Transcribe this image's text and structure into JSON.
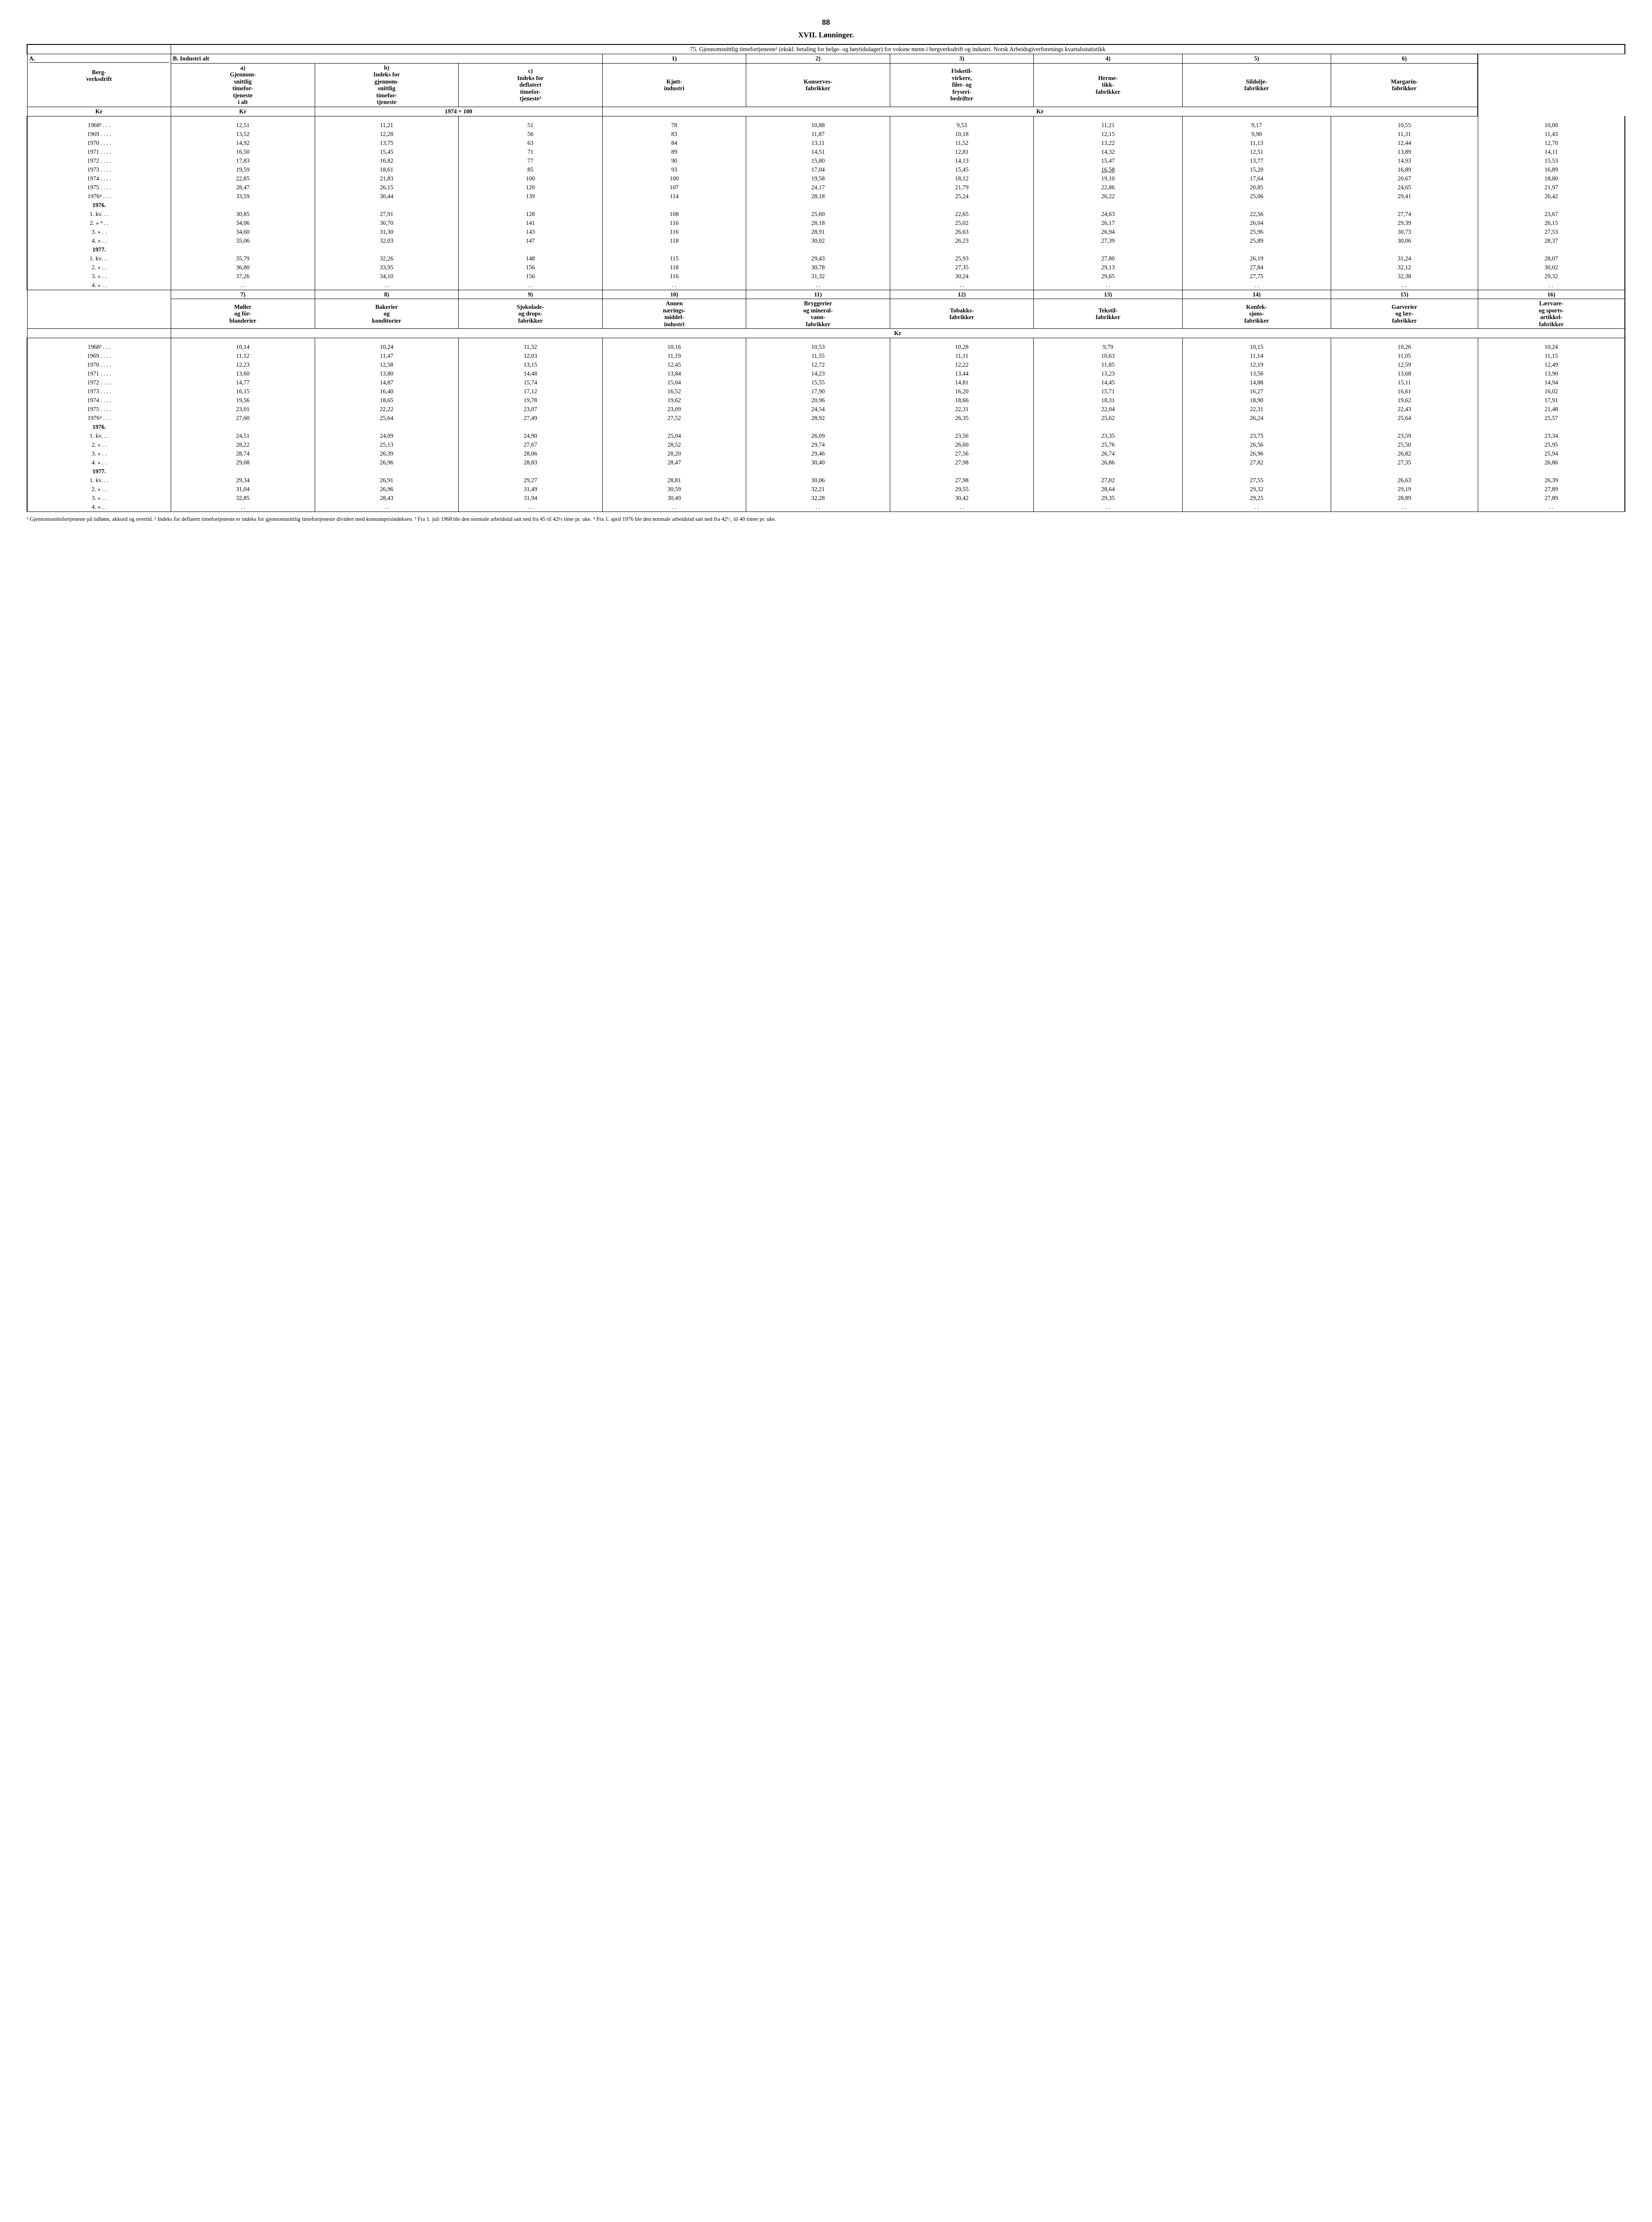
{
  "page_number": "88",
  "section": "XVII. Lønninger.",
  "table_title": "75. Gjennomsnittlig timefortjeneste¹ (ekskl. betaling for helge- og høytidsdager) for voksne menn i bergverksdrift og industri. Norsk Arbeidsgiverforenings kvartalsstatistikk",
  "top_headers": {
    "A": "A.",
    "A_sub": "Berg-\nverksdrift",
    "B": "B.       Industri   alt",
    "a": "a)\nGjennom-\nsnittlig\ntimefor-\ntjeneste\ni alt",
    "b": "b)\nIndeks for\ngjennom-\nsnittlig\ntimefor-\ntjeneste",
    "c": "c)\nIndeks for\ndeflatert\ntimefor-\ntjeneste²",
    "n1": "1)",
    "n2": "2)",
    "n3": "3)",
    "n4": "4)",
    "n5": "5)",
    "n6": "6)",
    "c1": "Kjøtt-\nindustri",
    "c2": "Konserves-\nfabrikker",
    "c3": "Fisketil-\nvirkere,\nfilet- og\nfryseri-\nbedrifter",
    "c4": "Herme-\ntikk-\nfabrikker",
    "c5": "Sildolje-\nfabrikker",
    "c6": "Margarin-\nfabrikker",
    "unit_kr": "Kr",
    "unit_idx": "1974 = 100"
  },
  "bottom_headers": {
    "n7": "7)",
    "c7": "Møller\nog fôr-\nblanderier",
    "n8": "8)",
    "c8": "Bakerier\nog\nkonditorier",
    "n9": "9)",
    "c9": "Sjokolade-\nog drops-\nfabrikker",
    "n10": "10)",
    "c10": "Annen\nnærings-\nmiddel-\nindustri",
    "n11": "11)",
    "c11": "Bryggerier\nog mineral-\nvann-\nfabrikker",
    "n12": "12)",
    "c12": "Tobakks-\nfabrikker",
    "n13": "13)",
    "c13": "Tekstil-\nfabrikker",
    "n14": "14)",
    "c14": "Konfek-\nsjons-\nfabrikker",
    "n15": "15)",
    "c15": "Garverier\nog lær-\nfabrikker",
    "n16": "16)",
    "c16": "Lærvare-\nog sports-\nartikkel-\nfabrikker"
  },
  "row_labels": {
    "y1968": "1968³ . . .",
    "y1969": "1969 . . . .",
    "y1970": "1970 . . . .",
    "y1971": "1971 . . . .",
    "y1972": "1972 . . . .",
    "y1973": "1973 . . . .",
    "y1974": "1974 . . . .",
    "y1975": "1975 . . . .",
    "y1976a": "1976⁴ . . .",
    "h1976": "1976.",
    "q1": "1. kv.  . .",
    "q2": "2.  »  ⁴ . .",
    "q2b": "2.  »    . .",
    "q3": "3.  »    . .",
    "q4": "4.  »    . .",
    "h1977": "1977.",
    "dots": ". ."
  },
  "top_data": {
    "y1968": [
      "12,51",
      "11,21",
      "51",
      "78",
      "10,88",
      "9,53",
      "11,21",
      "9,17",
      "10,55",
      "10,00"
    ],
    "y1969": [
      "13,52",
      "12,28",
      "56",
      "83",
      "11,87",
      "10,18",
      "12,15",
      "9,90",
      "11,31",
      "11,43"
    ],
    "y1970": [
      "14,92",
      "13,75",
      "63",
      "84",
      "13,11",
      "11,52",
      "13,22",
      "11,13",
      "12,44",
      "12,70"
    ],
    "y1971": [
      "16,50",
      "15,45",
      "71",
      "89",
      "14,51",
      "12,81",
      "14,32",
      "12,51",
      "13,89",
      "14,11"
    ],
    "y1972": [
      "17,83",
      "16,82",
      "77",
      "90",
      "15,80",
      "14,13",
      "15,47",
      "13,77",
      "14,93",
      "15,53"
    ],
    "y1973": [
      "19,59",
      "18,61",
      "85",
      "93",
      "17,04",
      "15,45",
      "16,58",
      "15,20",
      "16,89",
      "16,89"
    ],
    "y1974": [
      "22,85",
      "21,83",
      "100",
      "100",
      "19,58",
      "18,12",
      "19,10",
      "17,64",
      "20,67",
      "18,80"
    ],
    "y1975": [
      "28,47",
      "26,15",
      "120",
      "107",
      "24,17",
      "21,79",
      "22,86",
      "20,85",
      "24,65",
      "21,97"
    ],
    "y1976a": [
      "33,59",
      "30,44",
      "139",
      "114",
      "28,18",
      "25,24",
      "26,22",
      "25,06",
      "29,41",
      "26,42"
    ],
    "q1_76": [
      "30,85",
      "27,91",
      "128",
      "108",
      "25,60",
      "22,65",
      "24,63",
      "22,56",
      "27,74",
      "23,67"
    ],
    "q2_76": [
      "34,06",
      "30,70",
      "141",
      "116",
      "28,18",
      "25,02",
      "26,17",
      "26,04",
      "29,39",
      "26,15"
    ],
    "q3_76": [
      "34,60",
      "31,30",
      "143",
      "116",
      "28,91",
      "26,63",
      "26,94",
      "25,96",
      "30,73",
      "27,53"
    ],
    "q4_76": [
      "35,06",
      "32,03",
      "147",
      "118",
      "30,02",
      "26,23",
      "27,39",
      "25,89",
      "30,06",
      "28,37"
    ],
    "q1_77": [
      "35,79",
      "32,26",
      "148",
      "115",
      "29,43",
      "25,93",
      "27,80",
      "26,19",
      "31,24",
      "28,07"
    ],
    "q2_77": [
      "36,80",
      "33,95",
      "156",
      "118",
      "30,78",
      "27,35",
      "29,13",
      "27,84",
      "32,12",
      "30,02"
    ],
    "q3_77": [
      "37,26",
      "34,10",
      "156",
      "116",
      "31,32",
      "30,24",
      "29,65",
      "27,75",
      "32,38",
      "29,32"
    ],
    "q4_77": [
      ". .",
      ". .",
      ". .",
      ". .",
      ". .",
      ". .",
      ". .",
      ". .",
      ". .",
      ". ."
    ]
  },
  "bottom_data": {
    "y1968": [
      "10,14",
      "10,24",
      "11,32",
      "10,16",
      "10,53",
      "10,28",
      "9,79",
      "10,15",
      "10,26",
      "10,24"
    ],
    "y1969": [
      "11,12",
      "11,47",
      "12,03",
      "11,19",
      "11,55",
      "11,11",
      "10,63",
      "11,14",
      "11,05",
      "11,15"
    ],
    "y1970": [
      "12,23",
      "12,58",
      "13,15",
      "12,45",
      "12,72",
      "12,22",
      "11,85",
      "12,19",
      "12,59",
      "12,49"
    ],
    "y1971": [
      "13,60",
      "13,80",
      "14,48",
      "13,84",
      "14,23",
      "13,44",
      "13,23",
      "13,56",
      "13,68",
      "13,90"
    ],
    "y1972": [
      "14,77",
      "14,87",
      "15,74",
      "15,04",
      "15,55",
      "14,81",
      "14,45",
      "14,88",
      "15,11",
      "14,94"
    ],
    "y1973": [
      "16,15",
      "16,40",
      "17,12",
      "16,52",
      "17,90",
      "16,20",
      "15,71",
      "16,27",
      "16,61",
      "16,02"
    ],
    "y1974": [
      "19,56",
      "18,65",
      "19,78",
      "19,62",
      "20,96",
      "18,66",
      "18,31",
      "18,90",
      "19,62",
      "17,91"
    ],
    "y1975": [
      "23,01",
      "22,22",
      "23,07",
      "23,09",
      "24,54",
      "22,31",
      "22,04",
      "22,31",
      "22,43",
      "21,48"
    ],
    "y1976a": [
      "27,60",
      "25,64",
      "27,49",
      "27,52",
      "28,92",
      "26,35",
      "25,62",
      "26,24",
      "25,64",
      "25,57"
    ],
    "q1_76": [
      "24,51",
      "24,09",
      "24,90",
      "25,04",
      "26,09",
      "23,56",
      "23,35",
      "23,75",
      "23,59",
      "23,34"
    ],
    "q2_76": [
      "28,22",
      "25,13",
      "27,67",
      "28,52",
      "29,74",
      "26,60",
      "25,76",
      "26,56",
      "25,50",
      "25,95"
    ],
    "q3_76": [
      "28,74",
      "26,39",
      "28,06",
      "28,20",
      "29,46",
      "27,56",
      "26,74",
      "26,96",
      "26,82",
      "25,94"
    ],
    "q4_76": [
      "29,08",
      "26,96",
      "28,83",
      "28,47",
      "30,40",
      "27,98",
      "26,86",
      "27,82",
      "27,35",
      "26,86"
    ],
    "q1_77": [
      "29,34",
      "26,91",
      "29,27",
      "28,81",
      "30,06",
      "27,98",
      "27,02",
      "27,55",
      "26,63",
      "26,39"
    ],
    "q2_77": [
      "31,04",
      "26,96",
      "31,49",
      "30,59",
      "32,21",
      "29,55",
      "28,64",
      "29,32",
      "29,19",
      "27,89"
    ],
    "q3_77": [
      "32,85",
      "28,43",
      "31,94",
      "30,49",
      "32,28",
      "30,42",
      "29,35",
      "29,25",
      "28,89",
      "27,89"
    ],
    "q4_77": [
      ". .",
      ". .",
      ". .",
      ". .",
      ". .",
      ". .",
      ". .",
      ". .",
      ". .",
      ". ."
    ]
  },
  "footnote": "¹ Gjennomsnittsfortjeneste på tidlønn, akkord og overtid. ² Indeks for deflatert timefortjeneste er indeks for gjennomsnitt­lig timefortjeneste dividert med konsumprisindeksen. ³ Fra 1. juli 1968 ble den normale arbeidstid satt ned fra 45 til 42½ time pr. uke. ⁴ Fra 1. april 1976 ble den normale arbeidstid satt ned fra 42¹/₂ til 40 timer pr. uke."
}
